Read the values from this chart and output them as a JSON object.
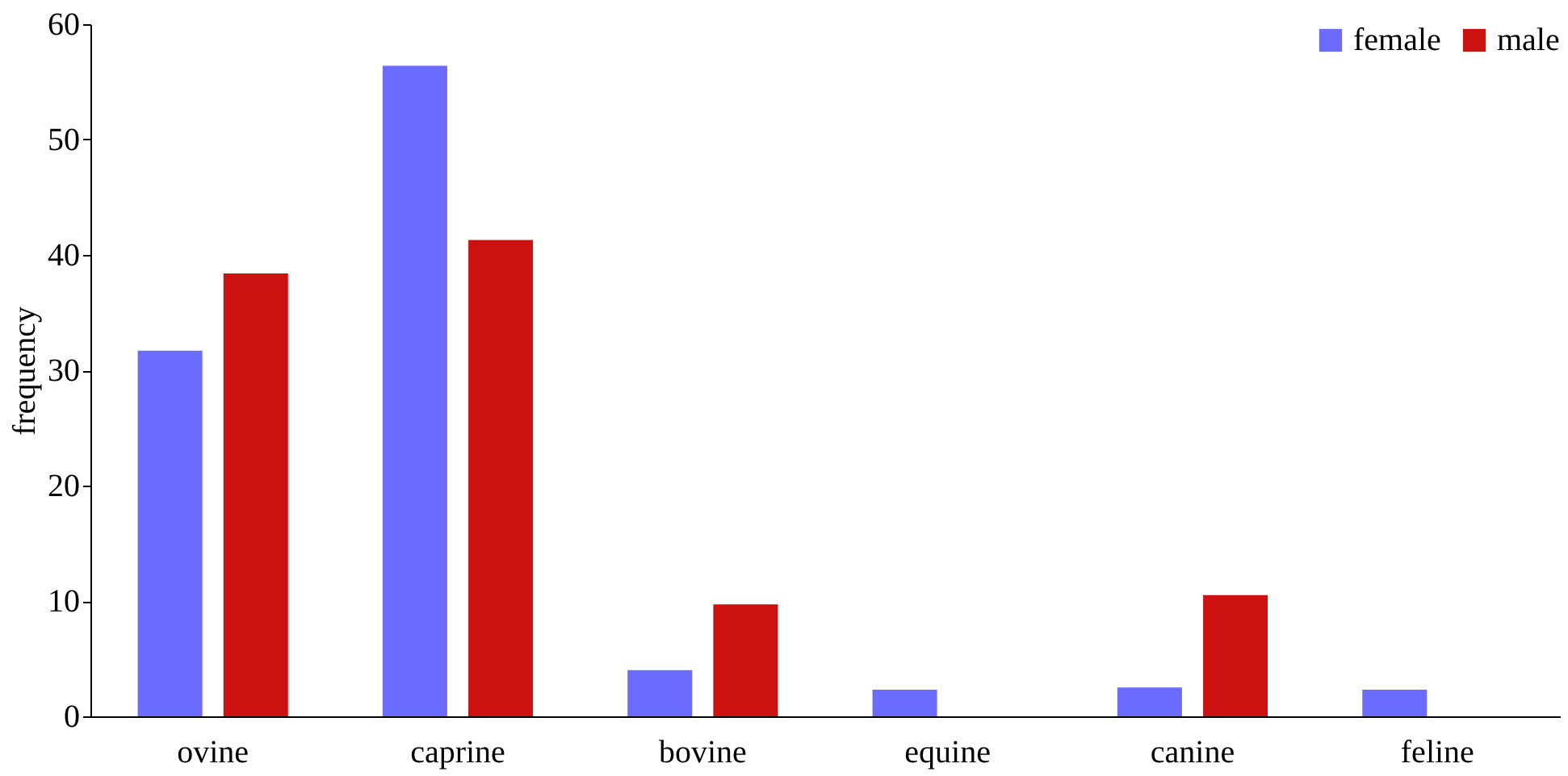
{
  "chart_data": {
    "type": "bar",
    "ylabel": "frequency",
    "categories": [
      "ovine",
      "caprine",
      "bovine",
      "equine",
      "canine",
      "feline"
    ],
    "series": [
      {
        "name": "female",
        "color": "#6b6bff",
        "values": [
          31.7,
          56.4,
          4,
          2.3,
          2.5,
          2.3
        ]
      },
      {
        "name": "male",
        "color": "#cc1111",
        "values": [
          38.4,
          41.3,
          9.7,
          0,
          10.5,
          0
        ]
      }
    ],
    "ylim": [
      0,
      60
    ],
    "yticks": [
      0,
      10,
      20,
      30,
      40,
      50,
      60
    ],
    "grid": false,
    "legend": "top right"
  }
}
